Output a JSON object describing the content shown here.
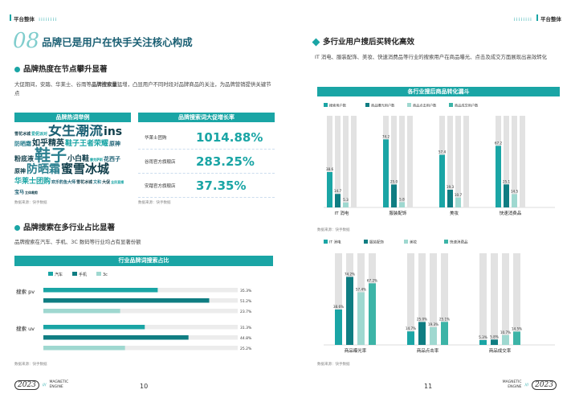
{
  "header": {
    "left_tag": "平台整体",
    "right_tag": "平台整体"
  },
  "left": {
    "section_number": "08",
    "title": "品牌已是用户在快手关注核心构成",
    "s1_heading": "品牌热度在节点攀升显著",
    "s1_text_a": "大促期间，安踏、华莱士、谷雨等",
    "s1_text_bold": "品牌搜索量",
    "s1_text_b": "猛增，凸显用户不同时段对品牌商品的关注，为品牌营销提供关键节点",
    "wordcloud_title": "品牌热词举例",
    "wordcloud_source": "数据来源：快手数据",
    "wordcloud_words": [
      {
        "t": "雪花冰城",
        "s": 5
      },
      {
        "t": "爱伲派对",
        "s": 5
      },
      {
        "t": "女生潮流",
        "s": 17
      },
      {
        "t": "ins",
        "s": 14
      },
      {
        "t": "防晒霜",
        "s": 7
      },
      {
        "t": "如乎精英",
        "s": 10
      },
      {
        "t": "鞋子王者荣耀",
        "s": 9
      },
      {
        "t": "原神",
        "s": 7
      },
      {
        "t": "粉底液",
        "s": 8
      },
      {
        "t": "鞋子",
        "s": 20
      },
      {
        "t": "小白鞋",
        "s": 9
      },
      {
        "t": "雷克萨斯",
        "s": 4
      },
      {
        "t": "花西子",
        "s": 7
      },
      {
        "t": "原神",
        "s": 7
      },
      {
        "t": "防晒霜",
        "s": 14
      },
      {
        "t": "蜜雪冰城",
        "s": 15
      },
      {
        "t": "华莱士团购",
        "s": 9
      },
      {
        "t": "欢乐豹鱼大师",
        "s": 5
      },
      {
        "t": "雪花冰城",
        "s": 5
      },
      {
        "t": "文和",
        "s": 5
      },
      {
        "t": "大促",
        "s": 5
      },
      {
        "t": "全民直播",
        "s": 4
      },
      {
        "t": "宝马",
        "s": 6
      },
      {
        "t": "立体裁剪",
        "s": 4
      }
    ],
    "growth_title": "品牌搜索词大促增长率",
    "growth_items": [
      {
        "label": "华莱士团购",
        "value": "1014.88%"
      },
      {
        "label": "谷雨官方旗舰店",
        "value": "283.25%"
      },
      {
        "label": "安踏官方旗舰店",
        "value": "37.35%"
      }
    ],
    "growth_source": "数据来源：快手数据",
    "s2_heading": "品牌搜索在多行业占比显著",
    "s2_text": "品牌搜索在汽车、手机、3C 数码等行业均占有显著份额",
    "hbar_title": "行业品牌词搜索占比",
    "hbar_source": "数据来源：快手数据",
    "page_number": "10",
    "footer_year": "2023",
    "footer_brand": "MAGNETIC ENGINE"
  },
  "right": {
    "s1_heading": "多行业用户搜后买转化高效",
    "s1_text": "IT 消电、服装配饰、美妆、快速消费品等行业的搜索用户在商品曝光、点击及成交方面展现出高效转化",
    "chart1_title": "各行业搜后商品转化漏斗",
    "chart1_source": "数据来源：快手数据",
    "chart2_source": "数据来源：快手数据",
    "page_number": "11",
    "footer_year": "2023",
    "footer_brand": "MAGNETIC ENGINE"
  },
  "colors": {
    "accent": "#1aa5a5",
    "dark": "#1a5f73",
    "c1": "#1aa5a5",
    "c2": "#0f7d82",
    "c3": "#9fd8d0",
    "c4": "#3cb4a7",
    "track": "#e2e2e2"
  },
  "chart_data": [
    {
      "type": "bar",
      "orientation": "horizontal",
      "title": "行业品牌词搜索占比",
      "categories": [
        "搜索 pv",
        "搜索 uv"
      ],
      "series": [
        {
          "name": "汽车",
          "values": [
            35.3,
            31.3
          ]
        },
        {
          "name": "手机",
          "values": [
            51.2,
            44.8
          ]
        },
        {
          "name": "3c",
          "values": [
            23.7,
            25.2
          ]
        }
      ],
      "unit": "%"
    },
    {
      "type": "bar",
      "title": "各行业搜后商品转化漏斗",
      "categories": [
        "IT 消电",
        "服装配饰",
        "美妆",
        "快速消费品"
      ],
      "series": [
        {
          "name": "搜索用户数",
          "values": [
            38.6,
            74.2,
            57.4,
            67.2
          ]
        },
        {
          "name": "商品曝光用户数",
          "values": [
            14.7,
            25.0,
            19.3,
            25.1
          ]
        },
        {
          "name": "商品点击用户数",
          "values": [
            5.3,
            5.8,
            10.7,
            14.5
          ]
        },
        {
          "name": "商品成交用户数",
          "values": [
            null,
            null,
            null,
            null
          ]
        }
      ],
      "unit": "%"
    },
    {
      "type": "bar",
      "categories": [
        "商品曝光率",
        "商品点击率",
        "商品成交率"
      ],
      "series": [
        {
          "name": "IT 消电",
          "values": [
            38.6,
            14.7,
            5.3
          ]
        },
        {
          "name": "服装配饰",
          "values": [
            74.2,
            25.0,
            5.8
          ]
        },
        {
          "name": "美妆",
          "values": [
            57.4,
            19.3,
            10.7
          ]
        },
        {
          "name": "快速消费品",
          "values": [
            67.2,
            25.1,
            14.5
          ]
        }
      ],
      "unit": "%"
    }
  ]
}
